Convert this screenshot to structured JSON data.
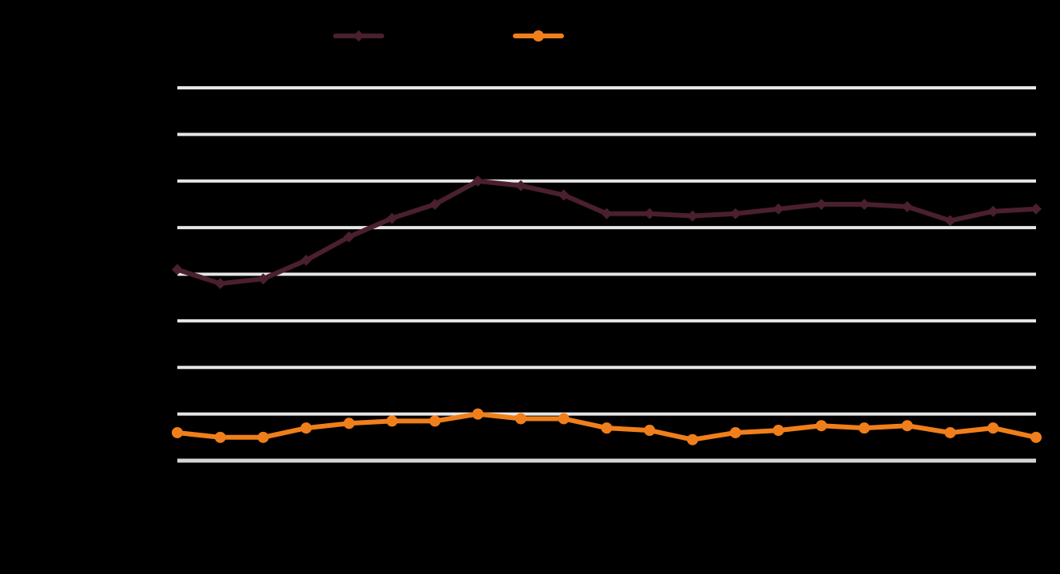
{
  "chart_data": {
    "type": "line",
    "title": "",
    "xlabel": "",
    "ylabel": "",
    "ylim": [
      0,
      8
    ],
    "grid": true,
    "legend": "top-left",
    "background_color": "#000000",
    "grid_color": "#e6e6e6",
    "x": [
      1,
      2,
      3,
      4,
      5,
      6,
      7,
      8,
      9,
      10,
      11,
      12,
      13,
      14,
      15,
      16,
      17,
      18,
      19,
      20,
      21
    ],
    "series": [
      {
        "color": "#4a1f2e",
        "marker": "diamond",
        "values": [
          4.1,
          3.8,
          3.9,
          4.3,
          4.8,
          5.2,
          5.5,
          6.0,
          5.9,
          5.7,
          5.3,
          5.3,
          5.25,
          5.3,
          5.4,
          5.5,
          5.5,
          5.45,
          5.15,
          5.35,
          5.4
        ]
      },
      {
        "color": "#f07f1b",
        "marker": "circle",
        "values": [
          0.6,
          0.5,
          0.5,
          0.7,
          0.8,
          0.85,
          0.85,
          1.0,
          0.9,
          0.9,
          0.7,
          0.65,
          0.45,
          0.6,
          0.65,
          0.75,
          0.7,
          0.75,
          0.6,
          0.7,
          0.5
        ]
      }
    ]
  }
}
